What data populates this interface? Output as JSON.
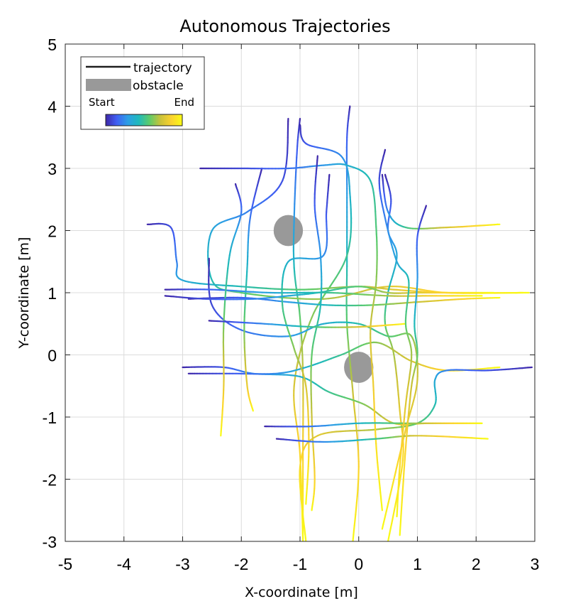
{
  "chart_data": {
    "type": "line",
    "title": "Autonomous Trajectories",
    "xlabel": "X-coordinate [m]",
    "ylabel": "Y-coordinate [m]",
    "xlim": [
      -5,
      3
    ],
    "ylim": [
      -3,
      5
    ],
    "xticks": [
      -5,
      -4,
      -3,
      -2,
      -1,
      0,
      1,
      2,
      3
    ],
    "yticks": [
      -3,
      -2,
      -1,
      0,
      1,
      2,
      3,
      4,
      5
    ],
    "grid": true,
    "legend": {
      "position": "top-left",
      "entries": [
        "trajectory",
        "obstacle"
      ],
      "colorbar_start": "Start",
      "colorbar_end": "End"
    },
    "colormap": [
      "#3e26a8",
      "#3f5ff3",
      "#2d9ee6",
      "#1fb9bc",
      "#5dcb6a",
      "#c9c23a",
      "#fbd22f",
      "#f9fb14"
    ],
    "obstacles": [
      {
        "x": -1.2,
        "y": 2.0,
        "radius": 0.25,
        "color": "#999999"
      },
      {
        "x": 0.0,
        "y": -0.2,
        "radius": 0.25,
        "color": "#999999"
      }
    ],
    "series": [
      {
        "points": [
          [
            -1.0,
            3.8
          ],
          [
            -1.05,
            3.3
          ],
          [
            -1.1,
            2.2
          ],
          [
            -1.1,
            1.4
          ],
          [
            -1.0,
            0.6
          ],
          [
            -0.95,
            -0.3
          ],
          [
            -0.95,
            -1.6
          ],
          [
            -0.95,
            -3.0
          ]
        ]
      },
      {
        "points": [
          [
            -0.15,
            4.0
          ],
          [
            -0.2,
            3.5
          ],
          [
            -0.2,
            2.6
          ],
          [
            -0.2,
            1.5
          ],
          [
            -0.2,
            0.5
          ],
          [
            -0.1,
            -0.6
          ],
          [
            0.0,
            -1.8
          ],
          [
            -0.1,
            -3.0
          ]
        ]
      },
      {
        "points": [
          [
            -1.0,
            3.7
          ],
          [
            -0.9,
            3.4
          ],
          [
            -0.3,
            3.2
          ],
          [
            -0.15,
            2.6
          ],
          [
            -0.2,
            1.6
          ],
          [
            -0.8,
            0.6
          ],
          [
            -1.1,
            -0.5
          ],
          [
            -1.0,
            -1.6
          ],
          [
            -0.95,
            -3.0
          ]
        ]
      },
      {
        "points": [
          [
            -1.2,
            3.8
          ],
          [
            -1.3,
            2.8
          ],
          [
            -1.9,
            2.3
          ],
          [
            -2.5,
            2.0
          ],
          [
            -2.5,
            1.2
          ],
          [
            -2.0,
            1.0
          ],
          [
            -0.6,
            0.9
          ],
          [
            0.5,
            1.1
          ],
          [
            1.5,
            1.0
          ],
          [
            2.8,
            1.0
          ]
        ]
      },
      {
        "points": [
          [
            -3.6,
            2.1
          ],
          [
            -3.2,
            2.05
          ],
          [
            -3.1,
            1.5
          ],
          [
            -3.0,
            1.2
          ],
          [
            -2.0,
            1.1
          ],
          [
            -1.0,
            1.05
          ],
          [
            0.0,
            1.1
          ],
          [
            0.6,
            1.05
          ],
          [
            1.5,
            1.0
          ],
          [
            2.9,
            1.0
          ]
        ]
      },
      {
        "points": [
          [
            0.45,
            2.9
          ],
          [
            0.55,
            2.5
          ],
          [
            0.5,
            2.0
          ],
          [
            0.65,
            1.6
          ],
          [
            0.5,
            1.0
          ],
          [
            0.45,
            0.5
          ],
          [
            0.6,
            0.0
          ],
          [
            0.7,
            -0.9
          ],
          [
            0.75,
            -1.7
          ],
          [
            0.5,
            -3.0
          ]
        ]
      },
      {
        "points": [
          [
            0.4,
            2.9
          ],
          [
            0.5,
            2.3
          ],
          [
            0.8,
            2.05
          ],
          [
            1.5,
            2.05
          ],
          [
            2.4,
            2.1
          ]
        ]
      },
      {
        "points": [
          [
            -3.0,
            -0.2
          ],
          [
            -2.3,
            -0.2
          ],
          [
            -1.8,
            -0.3
          ],
          [
            -1.0,
            -0.35
          ],
          [
            -0.5,
            -0.6
          ],
          [
            0.1,
            -0.8
          ],
          [
            0.6,
            -1.1
          ],
          [
            1.2,
            -1.1
          ],
          [
            2.1,
            -1.1
          ]
        ]
      },
      {
        "points": [
          [
            -2.9,
            -0.3
          ],
          [
            -2.2,
            -0.3
          ],
          [
            -1.4,
            -0.3
          ],
          [
            -0.9,
            -0.2
          ],
          [
            -0.3,
            0.0
          ],
          [
            0.3,
            0.2
          ],
          [
            0.9,
            -0.1
          ],
          [
            1.5,
            -0.25
          ],
          [
            2.4,
            -0.2
          ]
        ]
      },
      {
        "points": [
          [
            2.95,
            -0.2
          ],
          [
            2.2,
            -0.25
          ],
          [
            1.5,
            -0.25
          ],
          [
            1.3,
            -0.4
          ],
          [
            1.3,
            -0.8
          ],
          [
            1.0,
            -1.1
          ],
          [
            0.3,
            -1.2
          ],
          [
            -0.7,
            -1.3
          ],
          [
            -1.0,
            -1.8
          ],
          [
            -0.9,
            -3.0
          ]
        ]
      },
      {
        "points": [
          [
            -2.55,
            1.55
          ],
          [
            -2.5,
            0.8
          ],
          [
            -2.0,
            0.4
          ],
          [
            -1.2,
            0.3
          ],
          [
            -0.6,
            0.5
          ],
          [
            0.0,
            0.5
          ],
          [
            0.5,
            0.3
          ],
          [
            0.9,
            0.3
          ],
          [
            1.0,
            -0.4
          ],
          [
            0.8,
            -1.2
          ],
          [
            0.6,
            -2.0
          ],
          [
            0.4,
            -2.8
          ]
        ]
      },
      {
        "points": [
          [
            -1.65,
            3.0
          ],
          [
            -1.85,
            2.2
          ],
          [
            -1.9,
            1.4
          ],
          [
            -1.95,
            0.4
          ],
          [
            -1.9,
            -0.5
          ],
          [
            -1.8,
            -0.9
          ]
        ]
      },
      {
        "points": [
          [
            -2.9,
            0.9
          ],
          [
            -2.0,
            0.92
          ],
          [
            -1.2,
            0.85
          ],
          [
            -0.5,
            0.8
          ],
          [
            0.2,
            0.8
          ],
          [
            1.0,
            0.85
          ],
          [
            1.8,
            0.9
          ],
          [
            2.4,
            0.92
          ]
        ]
      },
      {
        "points": [
          [
            -3.3,
            1.05
          ],
          [
            -2.5,
            1.05
          ],
          [
            -1.5,
            1.0
          ],
          [
            -0.5,
            1.0
          ],
          [
            0.5,
            0.95
          ],
          [
            1.2,
            0.95
          ],
          [
            2.1,
            0.95
          ]
        ]
      },
      {
        "points": [
          [
            -2.7,
            3.0
          ],
          [
            -2.0,
            3.0
          ],
          [
            -1.2,
            3.0
          ],
          [
            -0.6,
            3.05
          ],
          [
            -0.2,
            3.05
          ],
          [
            0.2,
            2.8
          ],
          [
            0.3,
            2.0
          ],
          [
            0.3,
            1.2
          ],
          [
            0.2,
            0.4
          ],
          [
            0.25,
            -0.5
          ],
          [
            0.3,
            -1.5
          ],
          [
            0.4,
            -2.5
          ]
        ]
      },
      {
        "points": [
          [
            -2.1,
            2.75
          ],
          [
            -2.0,
            2.3
          ],
          [
            -2.2,
            1.6
          ],
          [
            -2.3,
            0.5
          ],
          [
            -2.3,
            -0.5
          ],
          [
            -2.35,
            -1.3
          ]
        ]
      },
      {
        "points": [
          [
            -0.7,
            3.2
          ],
          [
            -0.75,
            2.4
          ],
          [
            -0.65,
            1.6
          ],
          [
            -0.65,
            0.8
          ],
          [
            -0.8,
            0.0
          ],
          [
            -0.8,
            -1.0
          ],
          [
            -0.75,
            -2.0
          ],
          [
            -0.8,
            -2.5
          ]
        ]
      },
      {
        "points": [
          [
            -0.5,
            2.9
          ],
          [
            -0.55,
            2.3
          ],
          [
            -0.6,
            1.6
          ],
          [
            -1.2,
            1.5
          ],
          [
            -1.3,
            0.8
          ],
          [
            -1.1,
            0.1
          ],
          [
            -0.9,
            -0.5
          ],
          [
            -0.85,
            -1.5
          ],
          [
            -0.9,
            -2.4
          ]
        ]
      },
      {
        "points": [
          [
            -1.6,
            -1.15
          ],
          [
            -0.8,
            -1.15
          ],
          [
            0.0,
            -1.1
          ],
          [
            0.8,
            -1.1
          ],
          [
            1.4,
            -1.1
          ],
          [
            2.1,
            -1.1
          ]
        ]
      },
      {
        "points": [
          [
            -2.55,
            0.55
          ],
          [
            -1.6,
            0.5
          ],
          [
            -0.8,
            0.45
          ],
          [
            0.0,
            0.45
          ],
          [
            0.8,
            0.5
          ]
        ]
      },
      {
        "points": [
          [
            -1.4,
            -1.35
          ],
          [
            -0.6,
            -1.4
          ],
          [
            0.3,
            -1.35
          ],
          [
            1.0,
            -1.3
          ],
          [
            2.2,
            -1.35
          ]
        ]
      },
      {
        "points": [
          [
            -3.3,
            0.95
          ],
          [
            -2.6,
            0.9
          ],
          [
            -1.8,
            0.9
          ],
          [
            -1.2,
            0.95
          ],
          [
            -0.7,
            1.0
          ],
          [
            0.0,
            1.1
          ],
          [
            0.5,
            1.0
          ],
          [
            1.0,
            1.0
          ],
          [
            1.6,
            1.0
          ],
          [
            2.3,
            1.0
          ]
        ]
      },
      {
        "points": [
          [
            0.45,
            3.3
          ],
          [
            0.35,
            2.8
          ],
          [
            0.45,
            2.2
          ],
          [
            0.65,
            1.5
          ],
          [
            0.85,
            1.2
          ],
          [
            0.8,
            0.5
          ],
          [
            0.9,
            0.0
          ],
          [
            0.8,
            -0.8
          ],
          [
            0.7,
            -1.8
          ],
          [
            0.65,
            -2.6
          ]
        ]
      },
      {
        "points": [
          [
            1.15,
            2.4
          ],
          [
            1.0,
            1.9
          ],
          [
            1.0,
            1.2
          ],
          [
            0.95,
            0.5
          ],
          [
            1.0,
            0.0
          ],
          [
            0.9,
            -0.5
          ],
          [
            0.8,
            -1.5
          ],
          [
            0.7,
            -2.9
          ]
        ]
      }
    ]
  }
}
